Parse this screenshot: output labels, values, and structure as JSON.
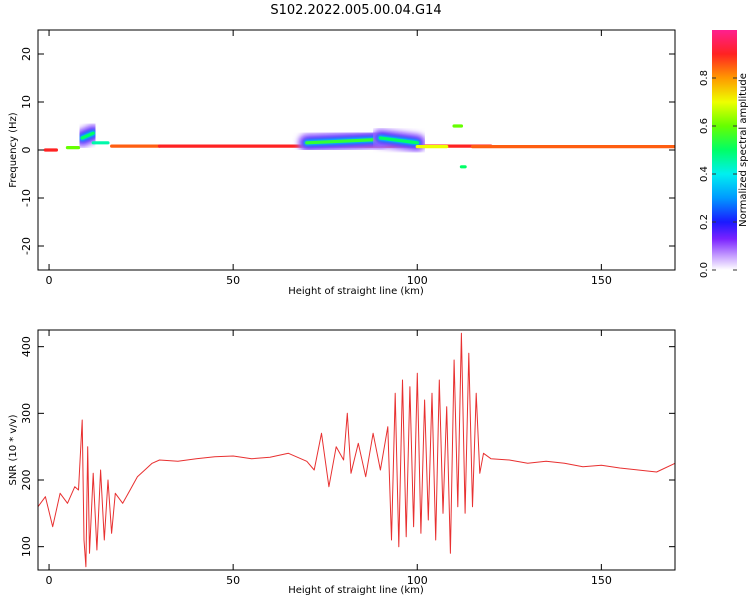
{
  "title": "S102.2022.005.00.04.G14",
  "chart_data": [
    {
      "type": "heatmap",
      "xlabel": "Height of straight line (km)",
      "ylabel": "Frequency (Hz)",
      "xlim": [
        -3,
        170
      ],
      "ylim": [
        -25,
        25
      ],
      "xticks": [
        0,
        50,
        100,
        150
      ],
      "yticks": [
        -20,
        -10,
        0,
        10,
        20
      ],
      "colorbar": {
        "label": "Normalized spectral amplitude",
        "range": [
          0,
          1
        ],
        "ticks": [
          0.0,
          0.2,
          0.4,
          0.6,
          0.8
        ]
      },
      "ridges": [
        {
          "x": [
            -1,
            2
          ],
          "y": [
            0.0,
            0.0
          ],
          "level": 0.9
        },
        {
          "x": [
            5,
            8
          ],
          "y": [
            0.5,
            0.5
          ],
          "level": 0.6
        },
        {
          "x": [
            9,
            12
          ],
          "y": [
            2.5,
            3.5
          ],
          "level": 0.5
        },
        {
          "x": [
            12,
            16
          ],
          "y": [
            1.5,
            1.5
          ],
          "level": 0.45
        },
        {
          "x": [
            17,
            30
          ],
          "y": [
            0.8,
            0.8
          ],
          "level": 0.85
        },
        {
          "x": [
            30,
            120
          ],
          "y": [
            0.8,
            0.8
          ],
          "level": 0.9
        },
        {
          "x": [
            70,
            90
          ],
          "y": [
            1.5,
            2.2
          ],
          "level": 0.55
        },
        {
          "x": [
            90,
            100
          ],
          "y": [
            2.5,
            1.5
          ],
          "level": 0.5
        },
        {
          "x": [
            100,
            108
          ],
          "y": [
            0.7,
            0.7
          ],
          "level": 0.7
        },
        {
          "x": [
            110,
            112
          ],
          "y": [
            5.0,
            5.0
          ],
          "level": 0.6
        },
        {
          "x": [
            112,
            113
          ],
          "y": [
            -3.5,
            -3.5
          ],
          "level": 0.5
        },
        {
          "x": [
            115,
            170
          ],
          "y": [
            0.7,
            0.7
          ],
          "level": 0.85
        }
      ]
    },
    {
      "type": "line",
      "xlabel": "Height of straight line (km)",
      "ylabel": "SNR (10 * v/v)",
      "xlim": [
        -3,
        170
      ],
      "ylim": [
        65,
        425
      ],
      "xticks": [
        0,
        50,
        100,
        150
      ],
      "yticks": [
        100,
        200,
        300,
        400
      ],
      "color": "#e83030",
      "series": [
        {
          "x": [
            -3,
            -1,
            1,
            3,
            5,
            7,
            8,
            9,
            9.5,
            10,
            10.5,
            11,
            12,
            13,
            14,
            15,
            16,
            17,
            18,
            20,
            22,
            24,
            26,
            28,
            30,
            35,
            40,
            45,
            50,
            55,
            60,
            65,
            70,
            72,
            74,
            76,
            78,
            80,
            81,
            82,
            84,
            86,
            88,
            90,
            92,
            93,
            94,
            95,
            96,
            97,
            98,
            99,
            100,
            101,
            102,
            103,
            104,
            105,
            106,
            107,
            108,
            109,
            110,
            111,
            112,
            113,
            114,
            115,
            116,
            117,
            118,
            120,
            125,
            130,
            135,
            140,
            145,
            150,
            155,
            160,
            165,
            170
          ],
          "y": [
            160,
            175,
            130,
            180,
            165,
            190,
            185,
            290,
            110,
            70,
            250,
            90,
            210,
            95,
            215,
            110,
            200,
            120,
            180,
            165,
            185,
            205,
            215,
            225,
            230,
            228,
            232,
            235,
            236,
            232,
            234,
            240,
            228,
            215,
            270,
            190,
            250,
            230,
            300,
            210,
            255,
            205,
            270,
            215,
            280,
            110,
            330,
            100,
            350,
            115,
            340,
            130,
            360,
            120,
            320,
            140,
            330,
            110,
            350,
            150,
            310,
            90,
            380,
            160,
            420,
            150,
            390,
            160,
            330,
            210,
            240,
            232,
            230,
            225,
            228,
            225,
            220,
            222,
            218,
            215,
            212,
            225
          ]
        }
      ]
    }
  ]
}
